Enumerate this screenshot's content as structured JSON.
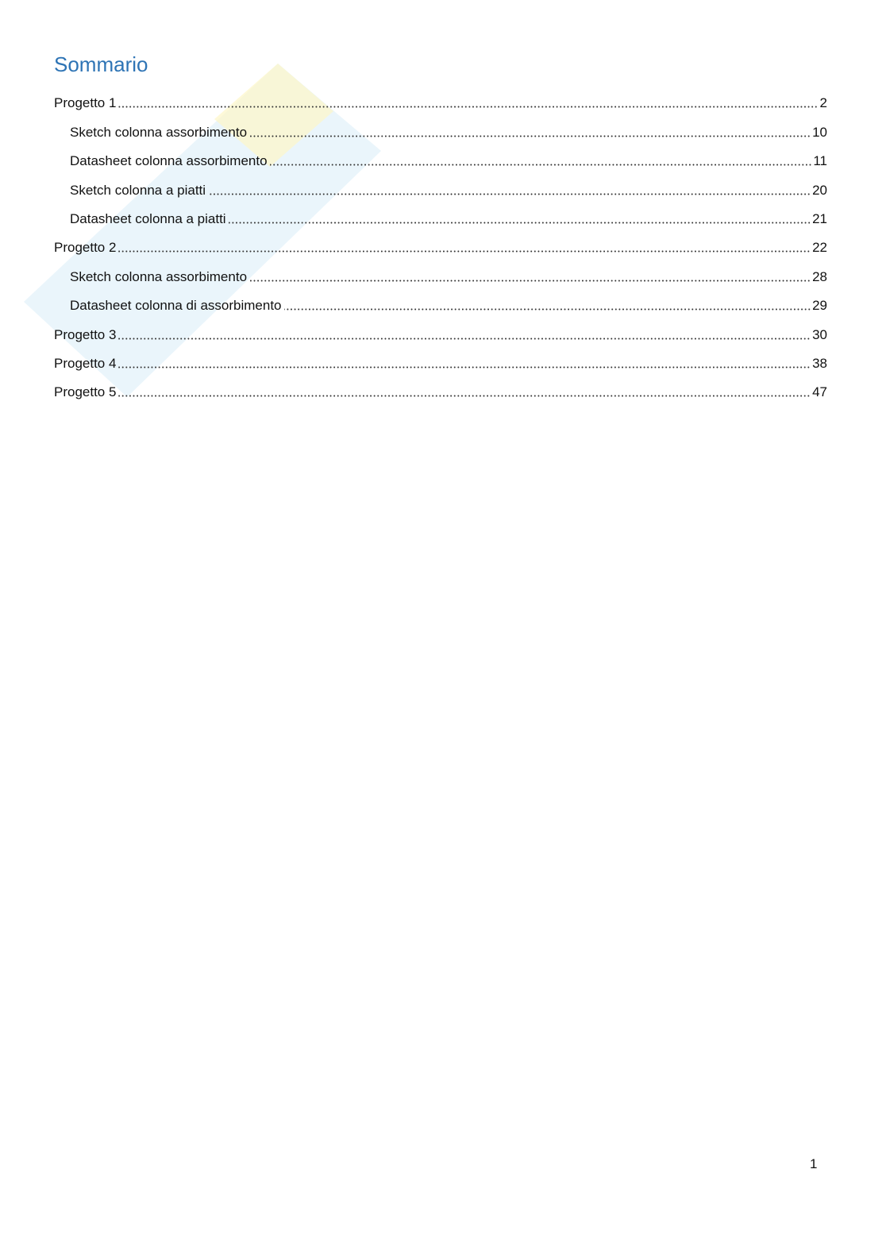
{
  "title": "Sommario",
  "toc": [
    {
      "label": "Progetto 1",
      "page": 2,
      "children": [
        {
          "label": "Sketch colonna assorbimento",
          "page": 10
        },
        {
          "label": "Datasheet colonna assorbimento",
          "page": 11
        },
        {
          "label": "Sketch colonna a piatti",
          "page": 20
        },
        {
          "label": "Datasheet colonna a piatti",
          "page": 21
        }
      ]
    },
    {
      "label": "Progetto 2",
      "page": 22,
      "children": [
        {
          "label": "Sketch colonna assorbimento",
          "page": 28
        },
        {
          "label": "Datasheet colonna di assorbimento",
          "page": 29
        }
      ]
    },
    {
      "label": "Progetto 3",
      "page": 30,
      "children": []
    },
    {
      "label": "Progetto 4",
      "page": 38,
      "children": []
    },
    {
      "label": "Progetto 5",
      "page": 47,
      "children": []
    }
  ],
  "footer": {
    "page_number": 1
  }
}
